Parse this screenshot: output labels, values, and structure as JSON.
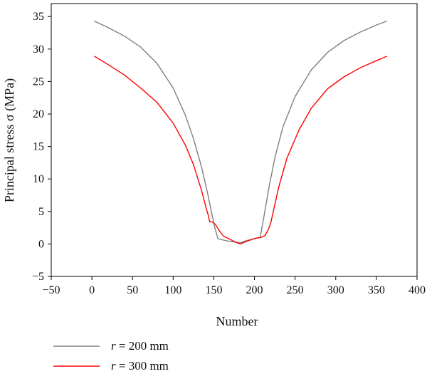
{
  "chart_data": {
    "type": "line",
    "xlabel": "Number",
    "ylabel": "Principal stress σ (MPa)",
    "xlim": [
      -50,
      400
    ],
    "ylim": [
      -5,
      37
    ],
    "xticks": [
      -50,
      0,
      50,
      100,
      150,
      200,
      250,
      300,
      350,
      400
    ],
    "yticks": [
      -5,
      0,
      5,
      10,
      15,
      20,
      25,
      30,
      35
    ],
    "xtick_labels": [
      "−50",
      "0",
      "50",
      "100",
      "150",
      "200",
      "250",
      "300",
      "350",
      "400"
    ],
    "ytick_labels": [
      "−5",
      "0",
      "5",
      "10",
      "15",
      "20",
      "25",
      "30",
      "35"
    ],
    "grid": false,
    "legend_position": "bottom-left, below the plot",
    "series": [
      {
        "name": "r = 200 mm",
        "legend_var": "r",
        "legend_rest": " = 200 mm",
        "color": "#7f7f7f",
        "x": [
          3,
          20,
          40,
          60,
          80,
          100,
          115,
          125,
          135,
          142,
          147,
          151,
          155,
          165,
          175,
          183,
          190,
          200,
          207,
          212,
          218,
          225,
          235,
          250,
          270,
          290,
          310,
          330,
          350,
          363
        ],
        "y": [
          34.3,
          33.3,
          32.0,
          30.3,
          27.8,
          24.0,
          19.8,
          16.2,
          11.8,
          8.0,
          5.0,
          2.6,
          0.8,
          0.5,
          0.3,
          0.2,
          0.5,
          0.8,
          1.0,
          4.5,
          8.8,
          13.2,
          18.0,
          22.7,
          26.8,
          29.5,
          31.3,
          32.6,
          33.7,
          34.3
        ]
      },
      {
        "name": "r = 300 mm",
        "legend_var": "r",
        "legend_rest": " = 300 mm",
        "color": "#ff0000",
        "x": [
          3,
          20,
          40,
          60,
          80,
          100,
          115,
          125,
          135,
          140,
          143,
          145,
          148,
          152,
          157,
          162,
          170,
          178,
          183,
          188,
          195,
          202,
          208,
          213,
          217,
          220,
          224,
          230,
          240,
          255,
          270,
          290,
          310,
          330,
          350,
          363
        ],
        "y": [
          28.9,
          27.6,
          26.0,
          24.0,
          21.8,
          18.6,
          15.2,
          12.2,
          8.2,
          5.8,
          4.5,
          3.4,
          3.4,
          3.0,
          2.0,
          1.2,
          0.7,
          0.2,
          0.0,
          0.3,
          0.6,
          0.9,
          1.0,
          1.3,
          2.2,
          3.2,
          5.5,
          8.8,
          13.2,
          17.6,
          20.9,
          23.9,
          25.7,
          27.1,
          28.2,
          28.9
        ]
      }
    ]
  }
}
